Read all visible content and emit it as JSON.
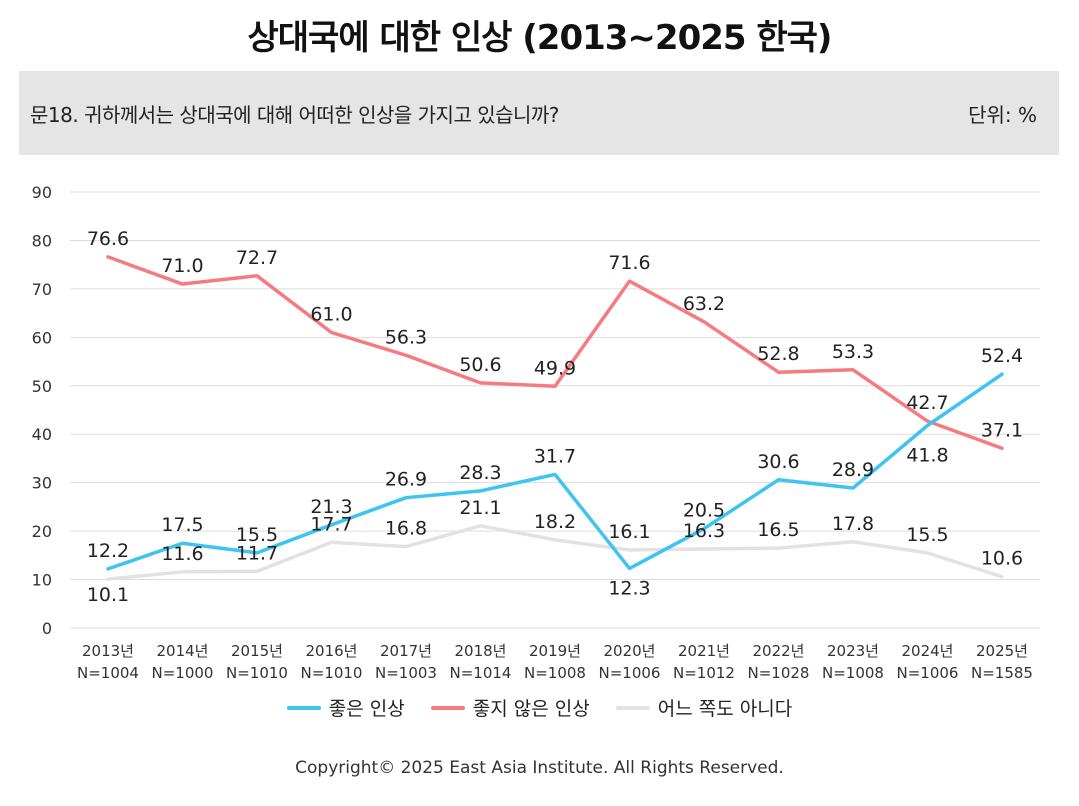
{
  "title": "상대국에 대한 인상 (2013~2025 한국)",
  "question": "문18. 귀하께서는 상대국에 대해 어떠한 인상을 가지고 있습니까?",
  "unit": "단위: %",
  "copyright": "Copyright© 2025 East Asia Institute. All Rights Reserved.",
  "colors": {
    "good": "#3ec4f0",
    "bad": "#f47c80",
    "neither": "#e2e2e2",
    "grid": "#dddddd"
  },
  "chart_data": {
    "type": "line",
    "categories": [
      "2013년",
      "2014년",
      "2015년",
      "2016년",
      "2017년",
      "2018년",
      "2019년",
      "2020년",
      "2021년",
      "2022년",
      "2023년",
      "2024년",
      "2025년"
    ],
    "sample_sizes": [
      "N=1004",
      "N=1000",
      "N=1010",
      "N=1010",
      "N=1003",
      "N=1014",
      "N=1008",
      "N=1006",
      "N=1012",
      "N=1028",
      "N=1008",
      "N=1006",
      "N=1585"
    ],
    "ylim": [
      0,
      90
    ],
    "yticks": [
      0,
      10,
      20,
      30,
      40,
      50,
      60,
      70,
      80,
      90
    ],
    "grid": true,
    "legend_position": "bottom",
    "series": [
      {
        "name": "좋은 인상",
        "color": "#3ec4f0",
        "values": [
          12.2,
          17.5,
          15.5,
          21.3,
          26.9,
          28.3,
          31.7,
          12.3,
          20.5,
          30.6,
          28.9,
          41.8,
          52.4
        ],
        "labels": [
          "12.2",
          "17.5",
          "15.5",
          "21.3",
          "26.9",
          "28.3",
          "31.7",
          "12.3",
          "20.5",
          "30.6",
          "28.9",
          "41.8",
          "52.4"
        ]
      },
      {
        "name": "좋지 않은 인상",
        "color": "#f47c80",
        "values": [
          76.6,
          71.0,
          72.7,
          61.0,
          56.3,
          50.6,
          49.9,
          71.6,
          63.2,
          52.8,
          53.3,
          42.7,
          37.1
        ],
        "labels": [
          "76.6",
          "71.0",
          "72.7",
          "61.0",
          "56.3",
          "50.6",
          "49.9",
          "71.6",
          "63.2",
          "52.8",
          "53.3",
          "42.7",
          "37.1"
        ]
      },
      {
        "name": "어느 쪽도 아니다",
        "color": "#e2e2e2",
        "values": [
          10.1,
          11.6,
          11.7,
          17.7,
          16.8,
          21.1,
          18.2,
          16.1,
          16.3,
          16.5,
          17.8,
          15.5,
          10.6
        ],
        "labels": [
          "10.1",
          "11.6",
          "11.7",
          "17.7",
          "16.8",
          "21.1",
          "18.2",
          "16.1",
          "16.3",
          "16.5",
          "17.8",
          "15.5",
          "10.6"
        ]
      }
    ]
  }
}
